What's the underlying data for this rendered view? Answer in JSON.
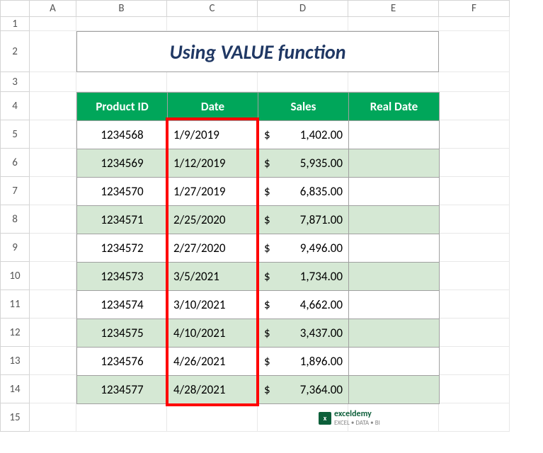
{
  "columns": {
    "labels": [
      "A",
      "B",
      "C",
      "D",
      "E",
      "F"
    ],
    "widths": [
      66,
      128,
      128,
      128,
      128,
      100
    ]
  },
  "rows": {
    "labels": [
      "1",
      "2",
      "3",
      "4",
      "5",
      "6",
      "7",
      "8",
      "9",
      "10",
      "11",
      "12",
      "13",
      "14",
      "15"
    ],
    "heights": [
      20,
      58,
      28,
      40,
      40,
      40,
      40,
      40,
      40,
      40,
      40,
      40,
      40,
      40,
      40
    ]
  },
  "title": {
    "text": "Using VALUE function",
    "color": "#203864",
    "background": "#ffffff"
  },
  "table": {
    "header_bg": "#00a65a",
    "header_color": "#ffffff",
    "row_alt_bg": "#d5e8d4",
    "row_bg": "#ffffff",
    "headers": [
      "Product ID",
      "Date",
      "Sales",
      "Real Date"
    ],
    "rows": [
      {
        "pid": "1234568",
        "date": "1/9/2019",
        "sales": "1,402.00"
      },
      {
        "pid": "1234569",
        "date": "1/12/2019",
        "sales": "5,935.00"
      },
      {
        "pid": "1234570",
        "date": "1/27/2019",
        "sales": "6,835.00"
      },
      {
        "pid": "1234571",
        "date": "2/25/2020",
        "sales": "7,871.00"
      },
      {
        "pid": "1234572",
        "date": "2/27/2020",
        "sales": "9,496.00"
      },
      {
        "pid": "1234573",
        "date": "3/5/2021",
        "sales": "1,734.00"
      },
      {
        "pid": "1234574",
        "date": "3/10/2021",
        "sales": "4,662.00"
      },
      {
        "pid": "1234575",
        "date": "4/10/2021",
        "sales": "3,437.00"
      },
      {
        "pid": "1234576",
        "date": "4/26/2021",
        "sales": "1,896.00"
      },
      {
        "pid": "1234577",
        "date": "4/28/2021",
        "sales": "7,364.00"
      }
    ],
    "currency_symbol": "$"
  },
  "highlight": {
    "color": "#ff0000",
    "column_index": 1
  },
  "watermark": {
    "brand": "exceldemy",
    "tagline": "EXCEL • DATA • BI",
    "icon_bg": "#0d5f3a",
    "brand_color": "#0d5f3a"
  }
}
